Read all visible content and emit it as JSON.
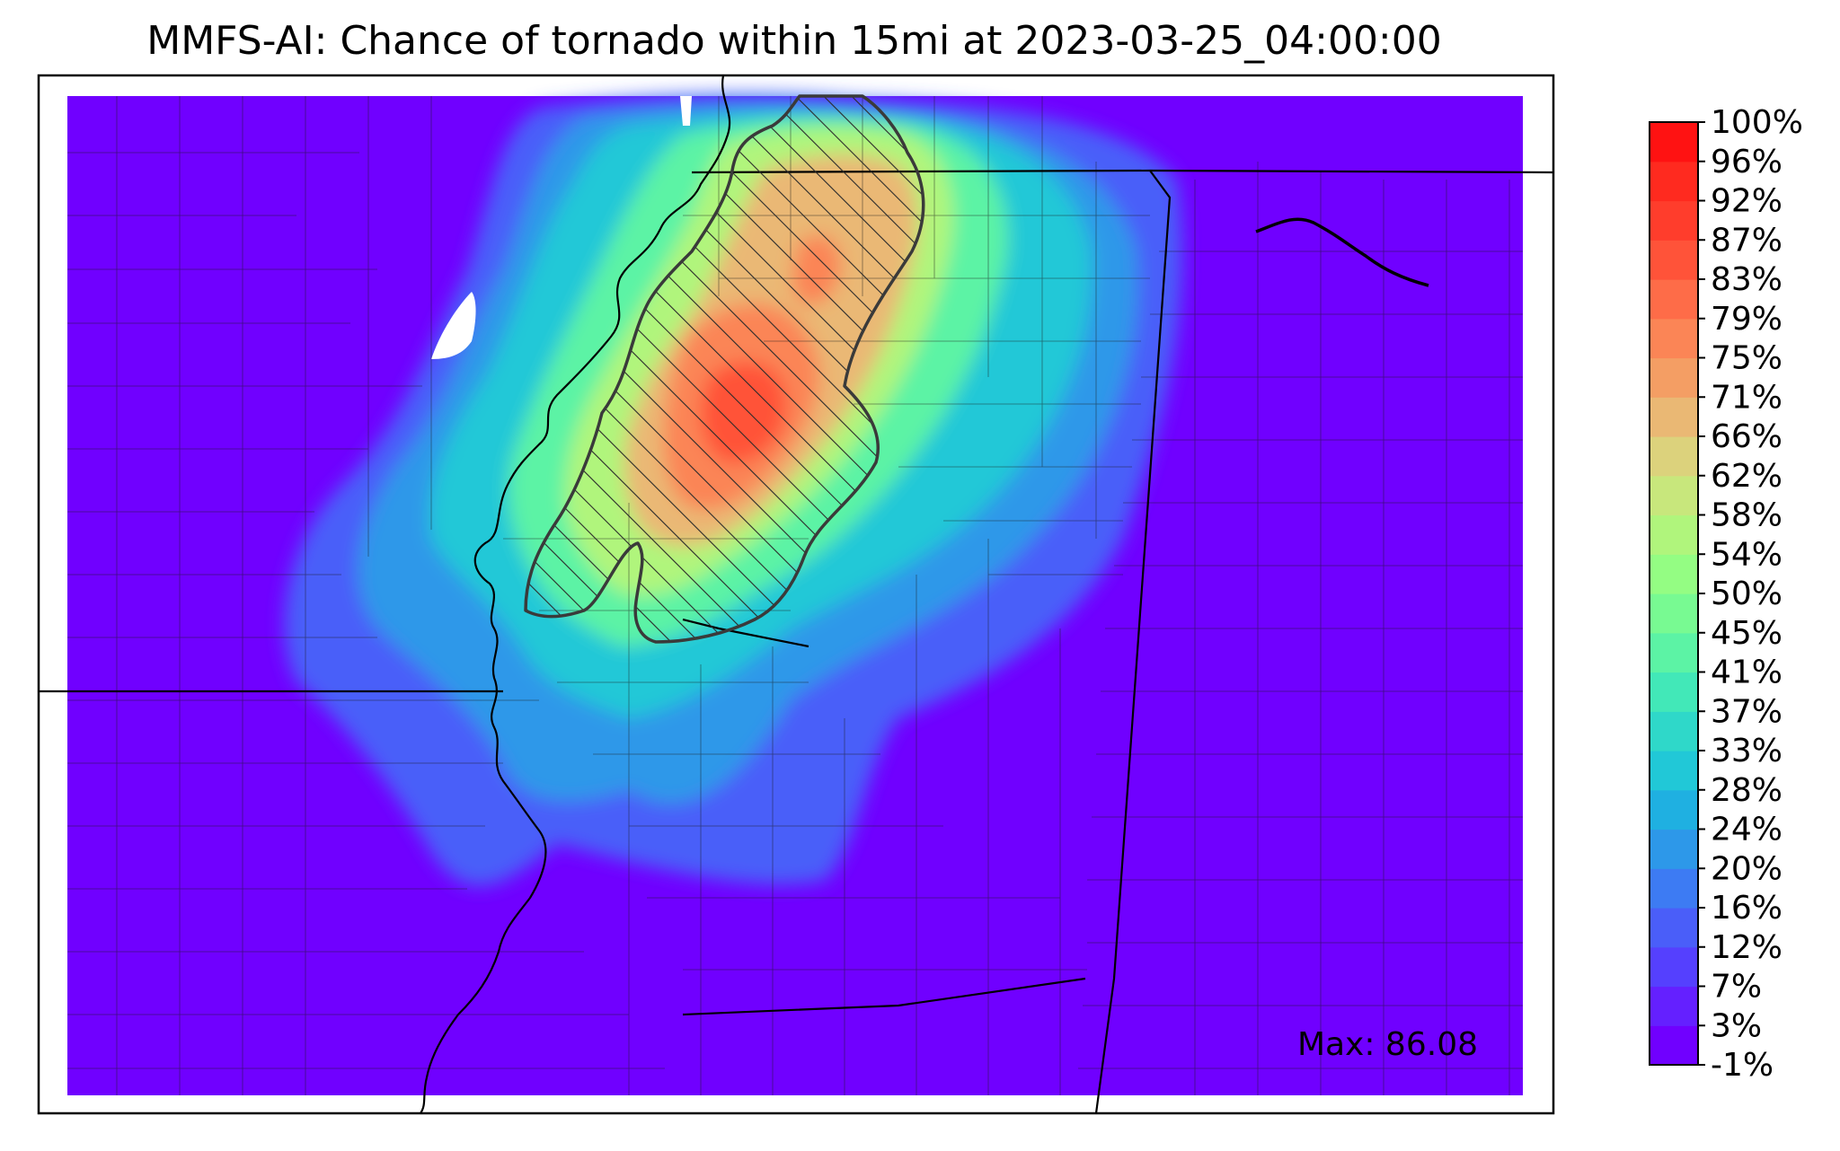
{
  "figure": {
    "title": "MMFS-AI: Chance of tornado within 15mi at 2023-03-25_04:00:00",
    "max_label": "Max: 86.08"
  },
  "colorbar": {
    "ticks": [
      "-1%",
      "3%",
      "7%",
      "12%",
      "16%",
      "20%",
      "24%",
      "28%",
      "33%",
      "37%",
      "41%",
      "45%",
      "50%",
      "54%",
      "58%",
      "62%",
      "66%",
      "71%",
      "75%",
      "79%",
      "83%",
      "87%",
      "92%",
      "96%",
      "100%"
    ],
    "colors": [
      "#7000ff",
      "#6420ff",
      "#5540fe",
      "#4a5ef9",
      "#3d7bf3",
      "#2d98e9",
      "#1fb0e1",
      "#21c8d7",
      "#2fd8c9",
      "#42e8b8",
      "#5cf3a5",
      "#78fa92",
      "#94fd83",
      "#b0f57c",
      "#c8e77c",
      "#dcd27c",
      "#eab874",
      "#f49e64",
      "#fb8556",
      "#fe6c48",
      "#ff5339",
      "#ff3d2c",
      "#ff2a1f",
      "#ff1212"
    ]
  },
  "chart_data": {
    "type": "heatmap",
    "title": "MMFS-AI: Chance of tornado within 15mi at 2023-03-25_04:00:00",
    "variable": "Chance of tornado within 15mi",
    "valid_time": "2023-03-25_04:00:00",
    "units": "%",
    "max_value": 86.08,
    "color_scale_range": [
      -1,
      100
    ],
    "colorbar_levels": [
      -1,
      3,
      7,
      12,
      16,
      20,
      24,
      28,
      33,
      37,
      41,
      45,
      50,
      54,
      58,
      62,
      66,
      71,
      75,
      79,
      83,
      87,
      92,
      96,
      100
    ],
    "hatched_region": "areas of highest probability (about 66% and above)"
  }
}
